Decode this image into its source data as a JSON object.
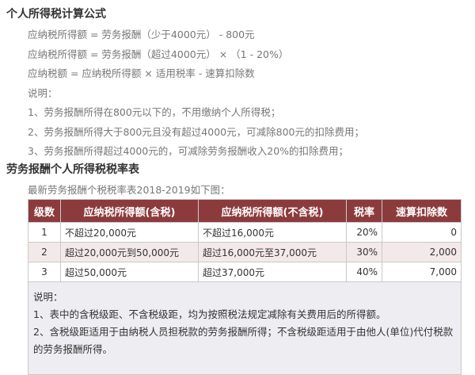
{
  "formula_title": "个人所得税计算公式",
  "formulas": [
    "应纳税所得额 = 劳务报酬（少于4000元） - 800元",
    "应纳税所得额 = 劳务报酬（超过4000元） × （1 - 20%）",
    "应纳税额 = 应纳税所得额 × 适用税率 - 速算扣除数"
  ],
  "explain_label": "说明：",
  "explain": [
    "1、劳务报酬所得在800元以下的，不用缴纳个人所得税；",
    "2、劳务报酬所得大于800元且没有超过4000元，可减除800元的扣除费用；",
    "3、劳务报酬所得超过4000元的，可减除劳务报酬收入20%的扣除费用；"
  ],
  "table_title": "劳务报酬个人所得税税率表",
  "table_intro": "最新劳务报酬个税税率表2018-2019如下图：",
  "table": {
    "headers": [
      "级数",
      "应纳税所得额(含税)",
      "应纳税所得额(不含税)",
      "税率",
      "速算扣除数"
    ],
    "rows": [
      [
        "1",
        "不超过20,000元",
        "不超过16,000元",
        "20%",
        "0"
      ],
      [
        "2",
        "超过20,000元到50,000元",
        "超过16,000元至37,000元",
        "30%",
        "2,000"
      ],
      [
        "3",
        "超过50,000元",
        "超过37,000元",
        "40%",
        "7,000"
      ]
    ],
    "notes_label": "说明：",
    "notes": [
      "1、表中的含税级距、不含税级距，均为按照税法规定减除有关费用后的所得额。",
      "2、含税级距适用于由纳税人员担税款的劳务报酬所得；不含税级距适用于由他人(单位)代付税款的劳务报酬所得。"
    ]
  },
  "colors": {
    "header_bg": "#8c3b3d",
    "alt_row_bg": "#f4e9e9",
    "notes_bg": "#eeeef2"
  }
}
